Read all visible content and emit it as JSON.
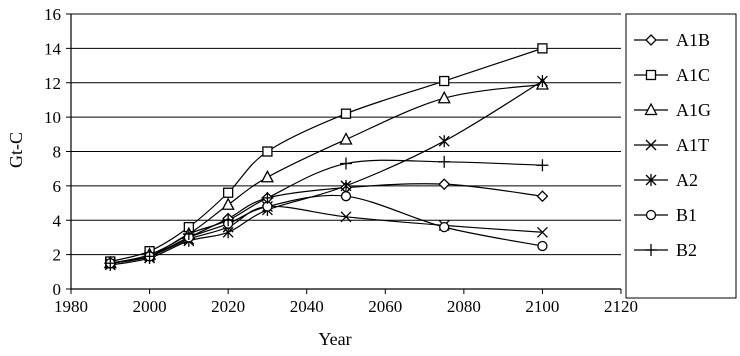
{
  "chart_data": {
    "type": "line",
    "title": "",
    "xlabel": "Year",
    "ylabel": "Gt-C",
    "xlim": [
      1980,
      2120
    ],
    "ylim": [
      0,
      16
    ],
    "xticks": [
      1980,
      2000,
      2020,
      2040,
      2060,
      2080,
      2100,
      2120
    ],
    "yticks": [
      0,
      2,
      4,
      6,
      8,
      10,
      12,
      14,
      16
    ],
    "grid": "horizontal",
    "legend": "right",
    "colors": {
      "line": "#000000",
      "grid": "#000000",
      "background": "#ffffff"
    },
    "x": [
      1990,
      2000,
      2010,
      2020,
      2030,
      2050,
      2075,
      2100
    ],
    "series": [
      {
        "name": "A1B",
        "marker": "diamond",
        "values": [
          1.5,
          1.9,
          3.0,
          4.1,
          5.3,
          5.9,
          6.1,
          5.4
        ]
      },
      {
        "name": "A1C",
        "marker": "square",
        "values": [
          1.6,
          2.2,
          3.6,
          5.6,
          8.0,
          10.2,
          12.1,
          14.0
        ]
      },
      {
        "name": "A1G",
        "marker": "triangle",
        "values": [
          1.5,
          2.0,
          3.2,
          4.9,
          6.5,
          8.7,
          11.1,
          11.9
        ]
      },
      {
        "name": "A1T",
        "marker": "x",
        "values": [
          1.5,
          1.9,
          2.9,
          3.6,
          4.8,
          4.2,
          3.7,
          3.3
        ]
      },
      {
        "name": "A2",
        "marker": "asterisk",
        "values": [
          1.4,
          1.8,
          2.8,
          3.3,
          4.6,
          6.0,
          8.6,
          12.1
        ]
      },
      {
        "name": "B1",
        "marker": "circle",
        "values": [
          1.5,
          1.9,
          3.0,
          3.8,
          4.8,
          5.4,
          3.6,
          2.5
        ]
      },
      {
        "name": "B2",
        "marker": "plus",
        "values": [
          1.5,
          1.9,
          3.2,
          4.0,
          5.3,
          7.3,
          7.4,
          7.2
        ]
      }
    ]
  }
}
